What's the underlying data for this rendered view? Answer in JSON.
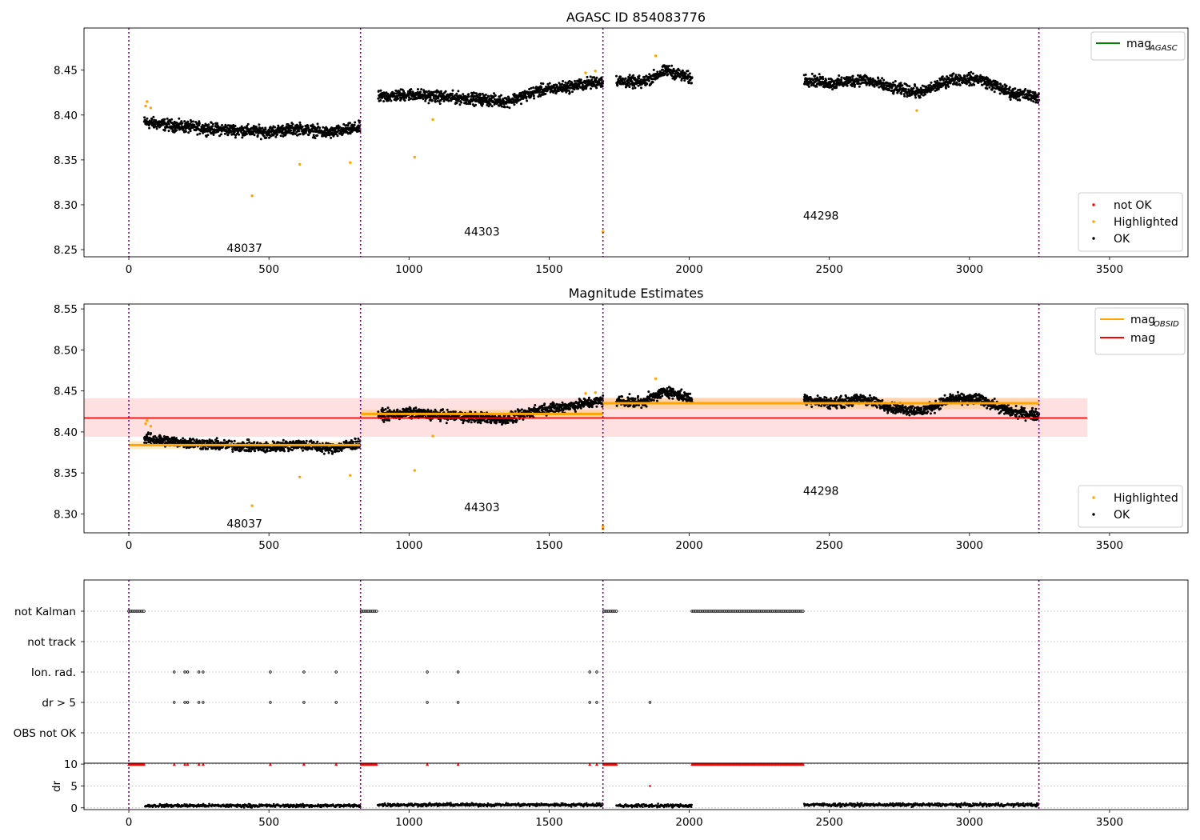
{
  "colors": {
    "ok": "#000000",
    "highlighted": "#ffa500",
    "not_ok": "#ff0000",
    "mag_agasc": "#008000",
    "mag_obsid": "#ffa500",
    "mag": "#ff0000",
    "obsid_boundary": "#800080",
    "grid": "#b0b0b0"
  },
  "chart_data": [
    {
      "id": "top",
      "type": "scatter",
      "title": "AGASC ID 854083776",
      "xlim": [
        -160,
        3780
      ],
      "ylim": [
        8.242,
        8.497
      ],
      "xticks": [
        0,
        500,
        1000,
        1500,
        2000,
        2500,
        3000,
        3500
      ],
      "yticks": [
        8.25,
        8.3,
        8.35,
        8.4,
        8.45
      ],
      "boundaries": [
        0,
        827,
        1692,
        3248
      ],
      "obsid_labels": [
        {
          "text": "48037",
          "x": 413,
          "y": 8.252
        },
        {
          "text": "44303",
          "x": 1260,
          "y": 8.27
        },
        {
          "text": "44298",
          "x": 2470,
          "y": 8.288
        }
      ],
      "legend_lines": [
        {
          "label": "mag",
          "sub": "AGASC",
          "color": "#008000",
          "position": "upper right"
        }
      ],
      "legend_points": [
        {
          "label": "not OK",
          "color": "#ff0000"
        },
        {
          "label": "Highlighted",
          "color": "#ffa500"
        },
        {
          "label": "OK",
          "color": "#000000"
        }
      ],
      "legend_points_position": "lower right",
      "series": [
        {
          "name": "OK",
          "segments": [
            {
              "x0": 55,
              "x1": 825,
              "y": [
                8.392,
                8.388,
                8.385,
                8.383,
                8.381,
                8.385,
                8.38,
                8.386
              ]
            },
            {
              "x0": 890,
              "x1": 1692,
              "y": [
                8.42,
                8.423,
                8.42,
                8.418,
                8.415,
                8.427,
                8.432,
                8.438
              ]
            },
            {
              "x0": 1740,
              "x1": 2010,
              "y": [
                8.438,
                8.436,
                8.45,
                8.44
              ]
            },
            {
              "x0": 2410,
              "x1": 3248,
              "y": [
                8.44,
                8.435,
                8.44,
                8.43,
                8.425,
                8.44,
                8.44,
                8.425,
                8.42
              ]
            }
          ]
        },
        {
          "name": "Highlighted",
          "points": [
            [
              60,
              8.41
            ],
            [
              65,
              8.415
            ],
            [
              78,
              8.408
            ],
            [
              440,
              8.31
            ],
            [
              610,
              8.345
            ],
            [
              790,
              8.347
            ],
            [
              1020,
              8.353
            ],
            [
              1085,
              8.395
            ],
            [
              1630,
              8.447
            ],
            [
              1665,
              8.449
            ],
            [
              1692,
              8.27
            ],
            [
              1880,
              8.466
            ],
            [
              2812,
              8.405
            ]
          ]
        }
      ]
    },
    {
      "id": "middle",
      "type": "scatter",
      "title": "Magnitude Estimates",
      "xlim": [
        -160,
        3780
      ],
      "ylim": [
        8.277,
        8.556
      ],
      "xticks": [
        0,
        500,
        1000,
        1500,
        2000,
        2500,
        3000,
        3500
      ],
      "yticks": [
        8.3,
        8.35,
        8.4,
        8.45,
        8.5,
        8.55
      ],
      "boundaries": [
        0,
        827,
        1692,
        3248
      ],
      "obsid_labels": [
        {
          "text": "48037",
          "x": 413,
          "y": 8.288
        },
        {
          "text": "44303",
          "x": 1260,
          "y": 8.308
        },
        {
          "text": "44298",
          "x": 2470,
          "y": 8.328
        }
      ],
      "mag": {
        "value": 8.417,
        "band": [
          8.394,
          8.441
        ],
        "x": [
          -160,
          3420
        ]
      },
      "mag_obsid": [
        {
          "x0": 0,
          "x1": 827,
          "y": 8.384,
          "band": [
            8.379,
            8.389
          ]
        },
        {
          "x0": 827,
          "x1": 1692,
          "y": 8.422,
          "band": [
            8.417,
            8.427
          ]
        },
        {
          "x0": 1692,
          "x1": 3248,
          "y": 8.435,
          "band": [
            8.428,
            8.442
          ]
        }
      ],
      "legend_lines": [
        {
          "label": "mag",
          "sub": "OBSID",
          "color": "#ffa500",
          "position": "upper right"
        },
        {
          "label": "mag",
          "sub": "",
          "color": "#ff0000",
          "position": "upper right"
        }
      ],
      "legend_points": [
        {
          "label": "Highlighted",
          "color": "#ffa500"
        },
        {
          "label": "OK",
          "color": "#000000"
        }
      ],
      "legend_points_position": "lower right",
      "series": [
        {
          "name": "OK",
          "segments": [
            {
              "x0": 55,
              "x1": 825,
              "y": [
                8.392,
                8.388,
                8.385,
                8.383,
                8.381,
                8.385,
                8.38,
                8.386
              ]
            },
            {
              "x0": 890,
              "x1": 1692,
              "y": [
                8.42,
                8.423,
                8.42,
                8.418,
                8.415,
                8.427,
                8.432,
                8.438
              ]
            },
            {
              "x0": 1740,
              "x1": 2010,
              "y": [
                8.438,
                8.436,
                8.45,
                8.44
              ]
            },
            {
              "x0": 2410,
              "x1": 3248,
              "y": [
                8.44,
                8.435,
                8.44,
                8.43,
                8.425,
                8.44,
                8.44,
                8.425,
                8.42
              ]
            }
          ]
        },
        {
          "name": "Highlighted",
          "points": [
            [
              60,
              8.41
            ],
            [
              65,
              8.414
            ],
            [
              78,
              8.407
            ],
            [
              440,
              8.31
            ],
            [
              610,
              8.345
            ],
            [
              790,
              8.347
            ],
            [
              1020,
              8.353
            ],
            [
              1085,
              8.395
            ],
            [
              1630,
              8.447
            ],
            [
              1665,
              8.448
            ],
            [
              1692,
              8.282
            ],
            [
              1692,
              8.285
            ],
            [
              1880,
              8.465
            ]
          ]
        }
      ]
    },
    {
      "id": "flags",
      "type": "scatter",
      "xlim": [
        -160,
        3780
      ],
      "categories": [
        "not Kalman",
        "not track",
        "Ion. rad.",
        "dr > 5",
        "OBS not OK"
      ],
      "boundaries": [
        0,
        827,
        1692,
        3248
      ],
      "not_kalman_ranges": [
        [
          0,
          58
        ],
        [
          830,
          888
        ],
        [
          1695,
          1740
        ],
        [
          2010,
          2410
        ]
      ],
      "ion_rad": [
        162,
        200,
        210,
        250,
        265,
        505,
        625,
        740,
        1065,
        1175,
        1645,
        1670
      ],
      "dr_gt_5": [
        162,
        200,
        210,
        250,
        265,
        505,
        625,
        740,
        1065,
        1175,
        1645,
        1670,
        1860
      ]
    },
    {
      "id": "dr",
      "type": "scatter",
      "ylabel": "dr",
      "xlim": [
        -160,
        3780
      ],
      "ylim": [
        -0.4,
        10.2
      ],
      "xticks": [
        0,
        500,
        1000,
        1500,
        2000,
        2500,
        3000,
        3500
      ],
      "yticks": [
        0,
        5,
        10
      ],
      "boundaries": [
        0,
        827,
        1692,
        3248
      ],
      "not_ok_ranges": [
        [
          0,
          58
        ],
        [
          830,
          888
        ],
        [
          1695,
          1740
        ],
        [
          2010,
          2410
        ]
      ],
      "not_ok_x": [
        162,
        200,
        210,
        250,
        265,
        505,
        625,
        740,
        1065,
        1175,
        1645,
        1670
      ],
      "outlier": [
        1860,
        5.0
      ],
      "ok_segments": [
        [
          58,
          827,
          0.5
        ],
        [
          888,
          1692,
          0.7
        ],
        [
          1740,
          2010,
          0.5
        ],
        [
          2410,
          3248,
          0.7
        ]
      ]
    }
  ]
}
